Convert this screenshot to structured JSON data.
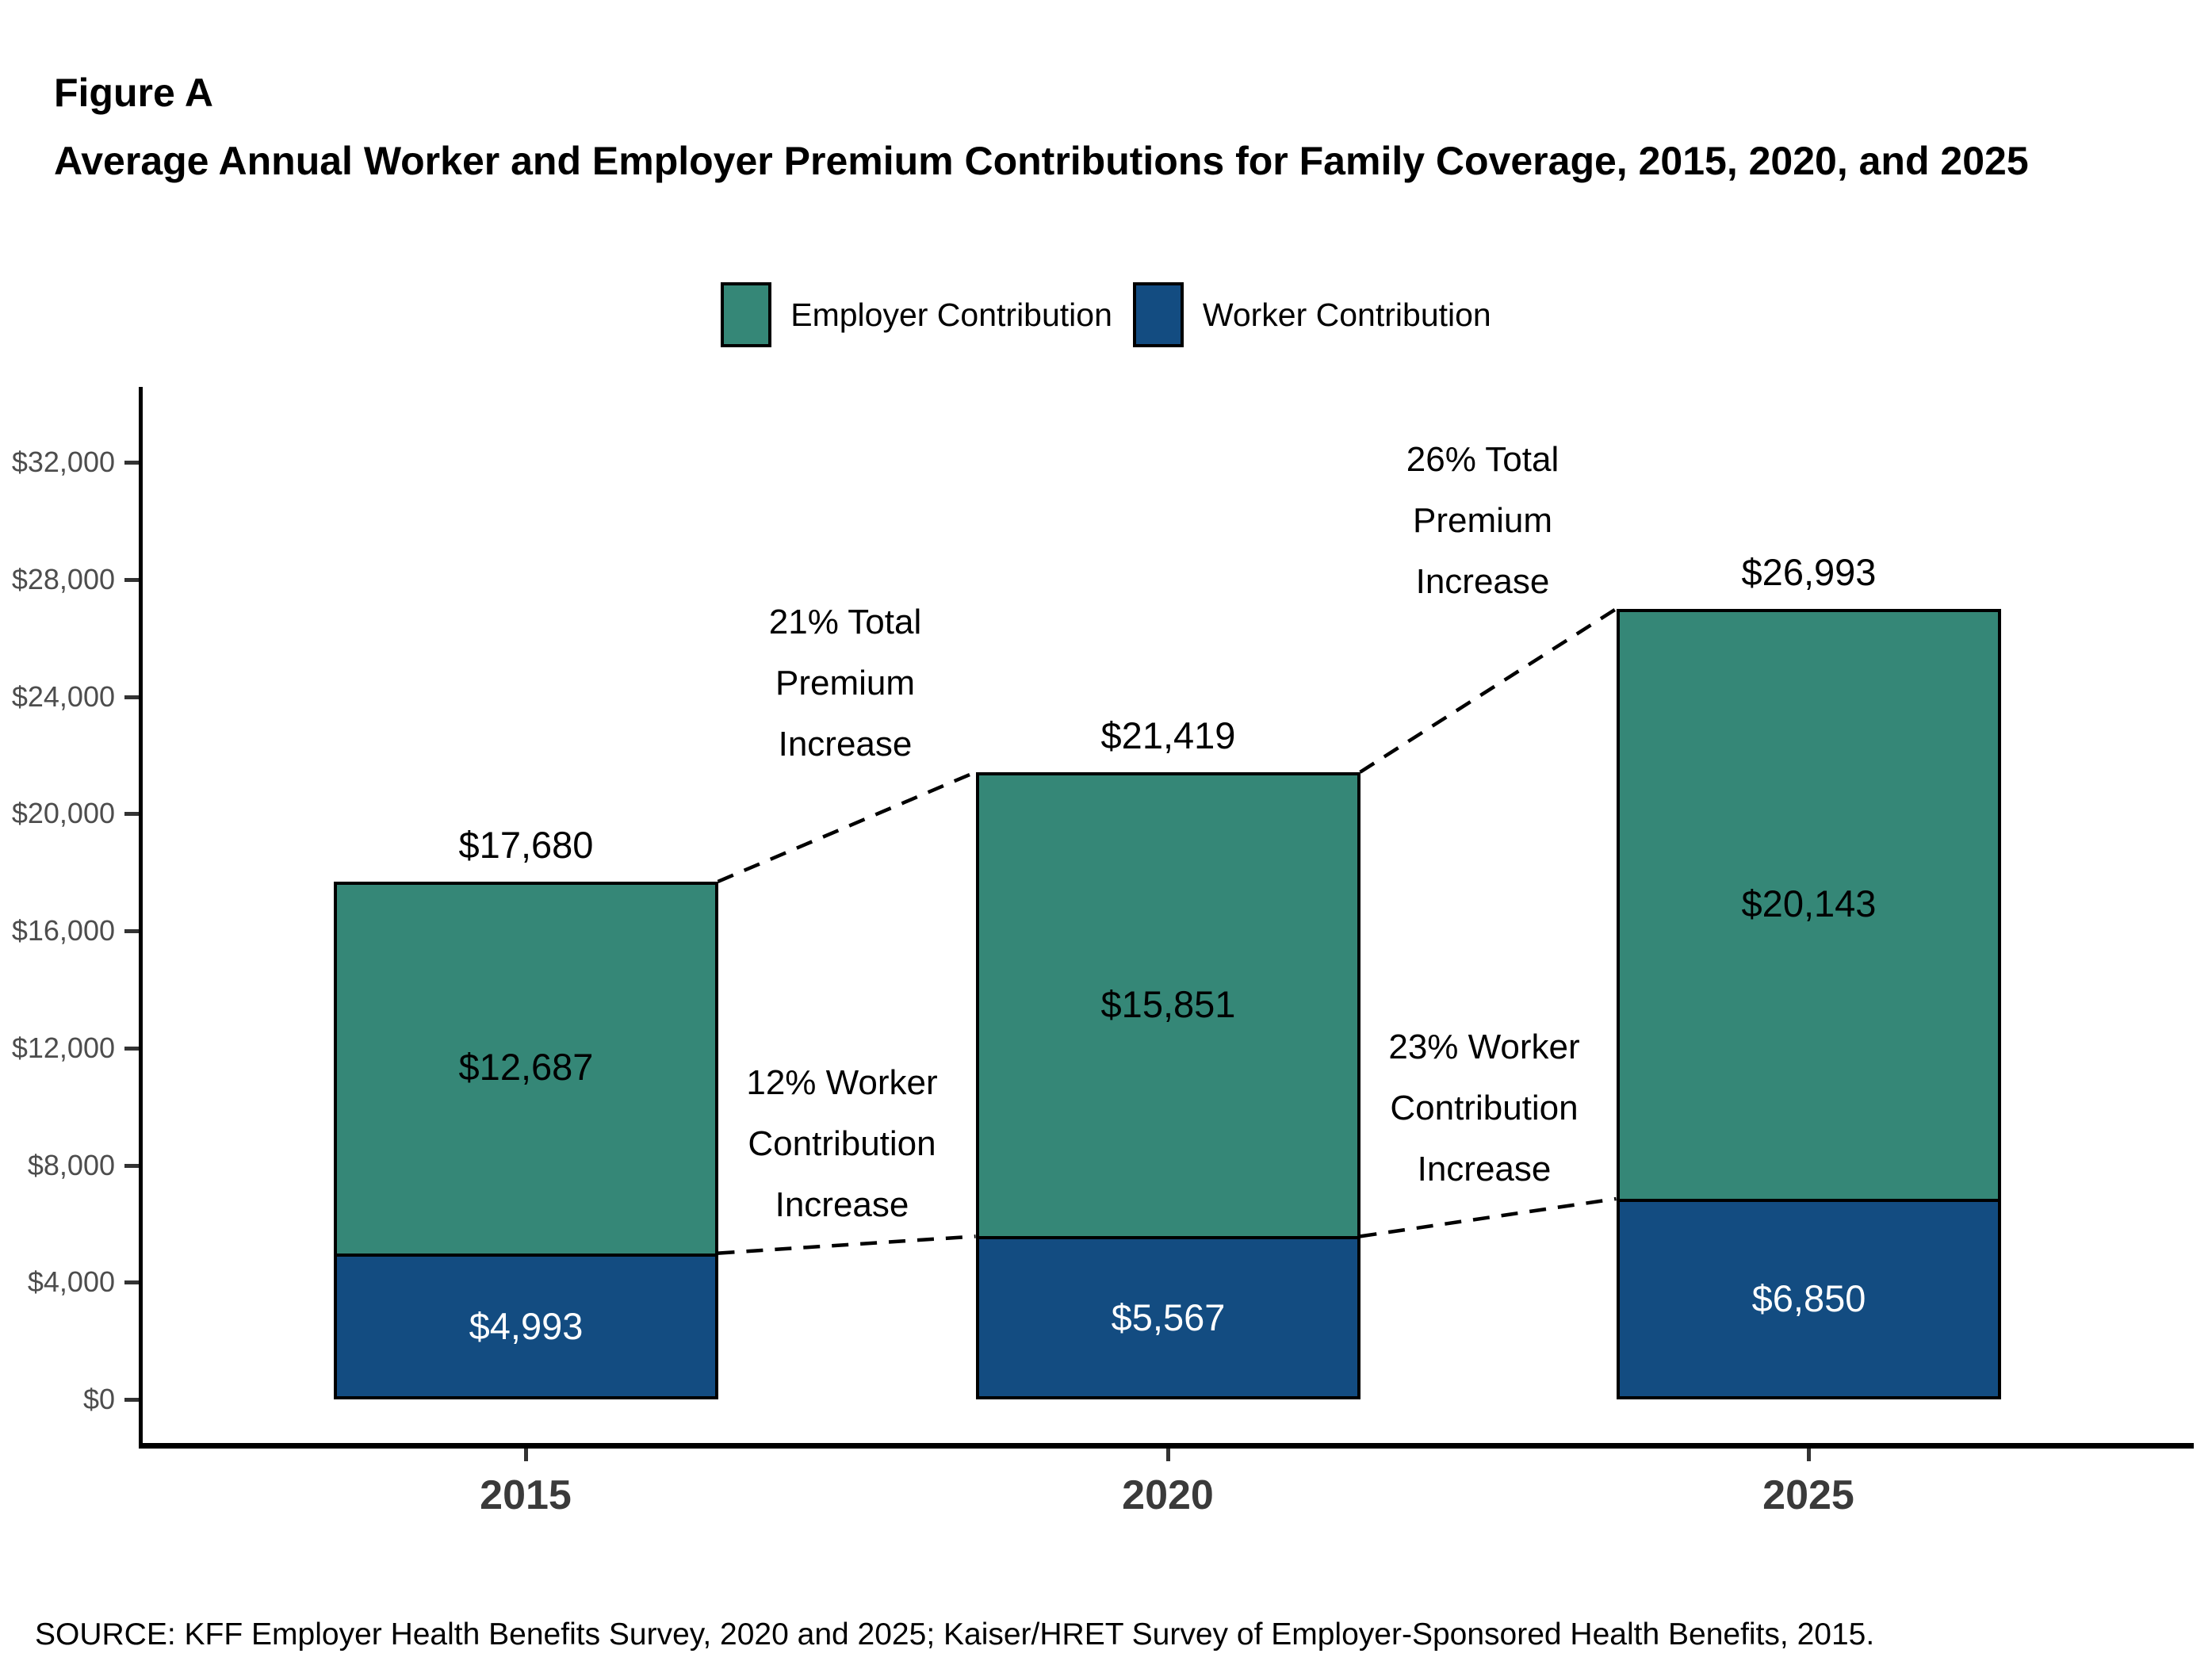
{
  "header": {
    "figure_label": "Figure A",
    "title": "Average Annual Worker and Employer Premium Contributions for Family Coverage, 2015, 2020, and 2025"
  },
  "legend": {
    "items": [
      {
        "label": "Employer Contribution",
        "color": "#358777"
      },
      {
        "label": "Worker Contribution",
        "color": "#134C81"
      }
    ]
  },
  "chart_data": {
    "type": "bar",
    "stacked": true,
    "title": "Average Annual Worker and Employer Premium Contributions for Family Coverage, 2015, 2020, and 2025",
    "categories": [
      "2015",
      "2020",
      "2025"
    ],
    "series": [
      {
        "name": "Worker Contribution",
        "color": "#134C81",
        "text_color": "#FFFFFF",
        "values": [
          4993,
          5567,
          6850
        ],
        "value_labels": [
          "$4,993",
          "$5,567",
          "$6,850"
        ]
      },
      {
        "name": "Employer Contribution",
        "color": "#358777",
        "text_color": "#000000",
        "values": [
          12687,
          15851,
          20143
        ],
        "value_labels": [
          "$12,687",
          "$15,851",
          "$20,143"
        ]
      }
    ],
    "totals": {
      "values": [
        17680,
        21419,
        26993
      ],
      "labels": [
        "$17,680",
        "$21,419",
        "$26,993"
      ]
    },
    "y_axis": {
      "min": 0,
      "max": 32000,
      "tick_step": 4000,
      "tick_values": [
        0,
        4000,
        8000,
        12000,
        16000,
        20000,
        24000,
        28000,
        32000
      ],
      "tick_labels": [
        "$0",
        "$4,000",
        "$8,000",
        "$12,000",
        "$16,000",
        "$20,000",
        "$24,000",
        "$28,000",
        "$32,000"
      ]
    },
    "x_axis": {
      "labels": [
        "2015",
        "2020",
        "2025"
      ]
    },
    "annotations": [
      {
        "id": "total-premium-increase-2015-2020",
        "lines": [
          "21% Total",
          "Premium",
          "Increase"
        ]
      },
      {
        "id": "total-premium-increase-2020-2025",
        "lines": [
          "26% Total",
          "Premium",
          "Increase"
        ]
      },
      {
        "id": "worker-contribution-increase-2015-2020",
        "lines": [
          "12% Worker",
          "Contribution",
          "Increase"
        ]
      },
      {
        "id": "worker-contribution-increase-2020-2025",
        "lines": [
          "23% Worker",
          "Contribution",
          "Increase"
        ]
      }
    ],
    "legend_position": "top",
    "grid": false
  },
  "footer": {
    "source": "SOURCE: KFF Employer Health Benefits Survey, 2020 and 2025; Kaiser/HRET Survey of Employer-Sponsored Health Benefits, 2015."
  }
}
